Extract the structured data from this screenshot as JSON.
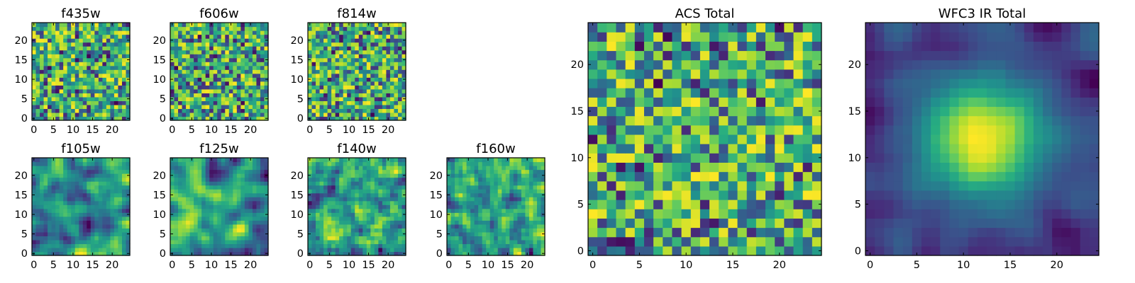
{
  "chart_data": [
    {
      "type": "heatmap",
      "title": "f435w",
      "grid_size": 25,
      "xlim": [
        0,
        24
      ],
      "ylim": [
        0,
        24
      ],
      "xticks": [
        "0",
        "5",
        "10",
        "15",
        "20"
      ],
      "yticks": [
        "0",
        "5",
        "10",
        "15",
        "20"
      ],
      "colormap": "viridis",
      "seed": 11,
      "smooth": 0
    },
    {
      "type": "heatmap",
      "title": "f606w",
      "grid_size": 25,
      "xlim": [
        0,
        24
      ],
      "ylim": [
        0,
        24
      ],
      "xticks": [
        "0",
        "5",
        "10",
        "15",
        "20"
      ],
      "yticks": [
        "0",
        "5",
        "10",
        "15",
        "20"
      ],
      "colormap": "viridis",
      "seed": 23,
      "smooth": 0
    },
    {
      "type": "heatmap",
      "title": "f814w",
      "grid_size": 25,
      "xlim": [
        0,
        24
      ],
      "ylim": [
        0,
        24
      ],
      "xticks": [
        "0",
        "5",
        "10",
        "15",
        "20"
      ],
      "yticks": [
        "0",
        "5",
        "10",
        "15",
        "20"
      ],
      "colormap": "viridis",
      "seed": 37,
      "smooth": 0
    },
    {
      "type": "heatmap",
      "title": "f105w",
      "grid_size": 25,
      "xlim": [
        0,
        24
      ],
      "ylim": [
        0,
        24
      ],
      "xticks": [
        "0",
        "5",
        "10",
        "15",
        "20"
      ],
      "yticks": [
        "0",
        "5",
        "10",
        "15",
        "20"
      ],
      "colormap": "viridis",
      "seed": 41,
      "smooth": 2
    },
    {
      "type": "heatmap",
      "title": "f125w",
      "grid_size": 25,
      "xlim": [
        0,
        24
      ],
      "ylim": [
        0,
        24
      ],
      "xticks": [
        "0",
        "5",
        "10",
        "15",
        "20"
      ],
      "yticks": [
        "0",
        "5",
        "10",
        "15",
        "20"
      ],
      "colormap": "viridis",
      "seed": 53,
      "smooth": 2
    },
    {
      "type": "heatmap",
      "title": "f140w",
      "grid_size": 25,
      "xlim": [
        0,
        24
      ],
      "ylim": [
        0,
        24
      ],
      "xticks": [
        "0",
        "5",
        "10",
        "15",
        "20"
      ],
      "yticks": [
        "0",
        "5",
        "10",
        "15",
        "20"
      ],
      "colormap": "viridis",
      "seed": 67,
      "smooth": 1
    },
    {
      "type": "heatmap",
      "title": "f160w",
      "grid_size": 25,
      "xlim": [
        0,
        24
      ],
      "ylim": [
        0,
        24
      ],
      "xticks": [
        "0",
        "5",
        "10",
        "15",
        "20"
      ],
      "yticks": [
        "0",
        "5",
        "10",
        "15",
        "20"
      ],
      "colormap": "viridis",
      "seed": 79,
      "smooth": 1
    },
    {
      "type": "heatmap",
      "title": "ACS Total",
      "grid_size": 25,
      "xlim": [
        0,
        24
      ],
      "ylim": [
        0,
        24
      ],
      "xticks": [
        "0",
        "5",
        "10",
        "15",
        "20"
      ],
      "yticks": [
        "0",
        "5",
        "10",
        "15",
        "20"
      ],
      "colormap": "viridis",
      "seed": 97,
      "smooth": 0
    },
    {
      "type": "heatmap",
      "title": "WFC3 IR Total",
      "grid_size": 25,
      "xlim": [
        0,
        24
      ],
      "ylim": [
        0,
        24
      ],
      "xticks": [
        "0",
        "5",
        "10",
        "15",
        "20"
      ],
      "yticks": [
        "0",
        "5",
        "10",
        "15",
        "20"
      ],
      "colormap": "viridis",
      "seed": 113,
      "smooth": 2,
      "bright_center": true
    }
  ]
}
